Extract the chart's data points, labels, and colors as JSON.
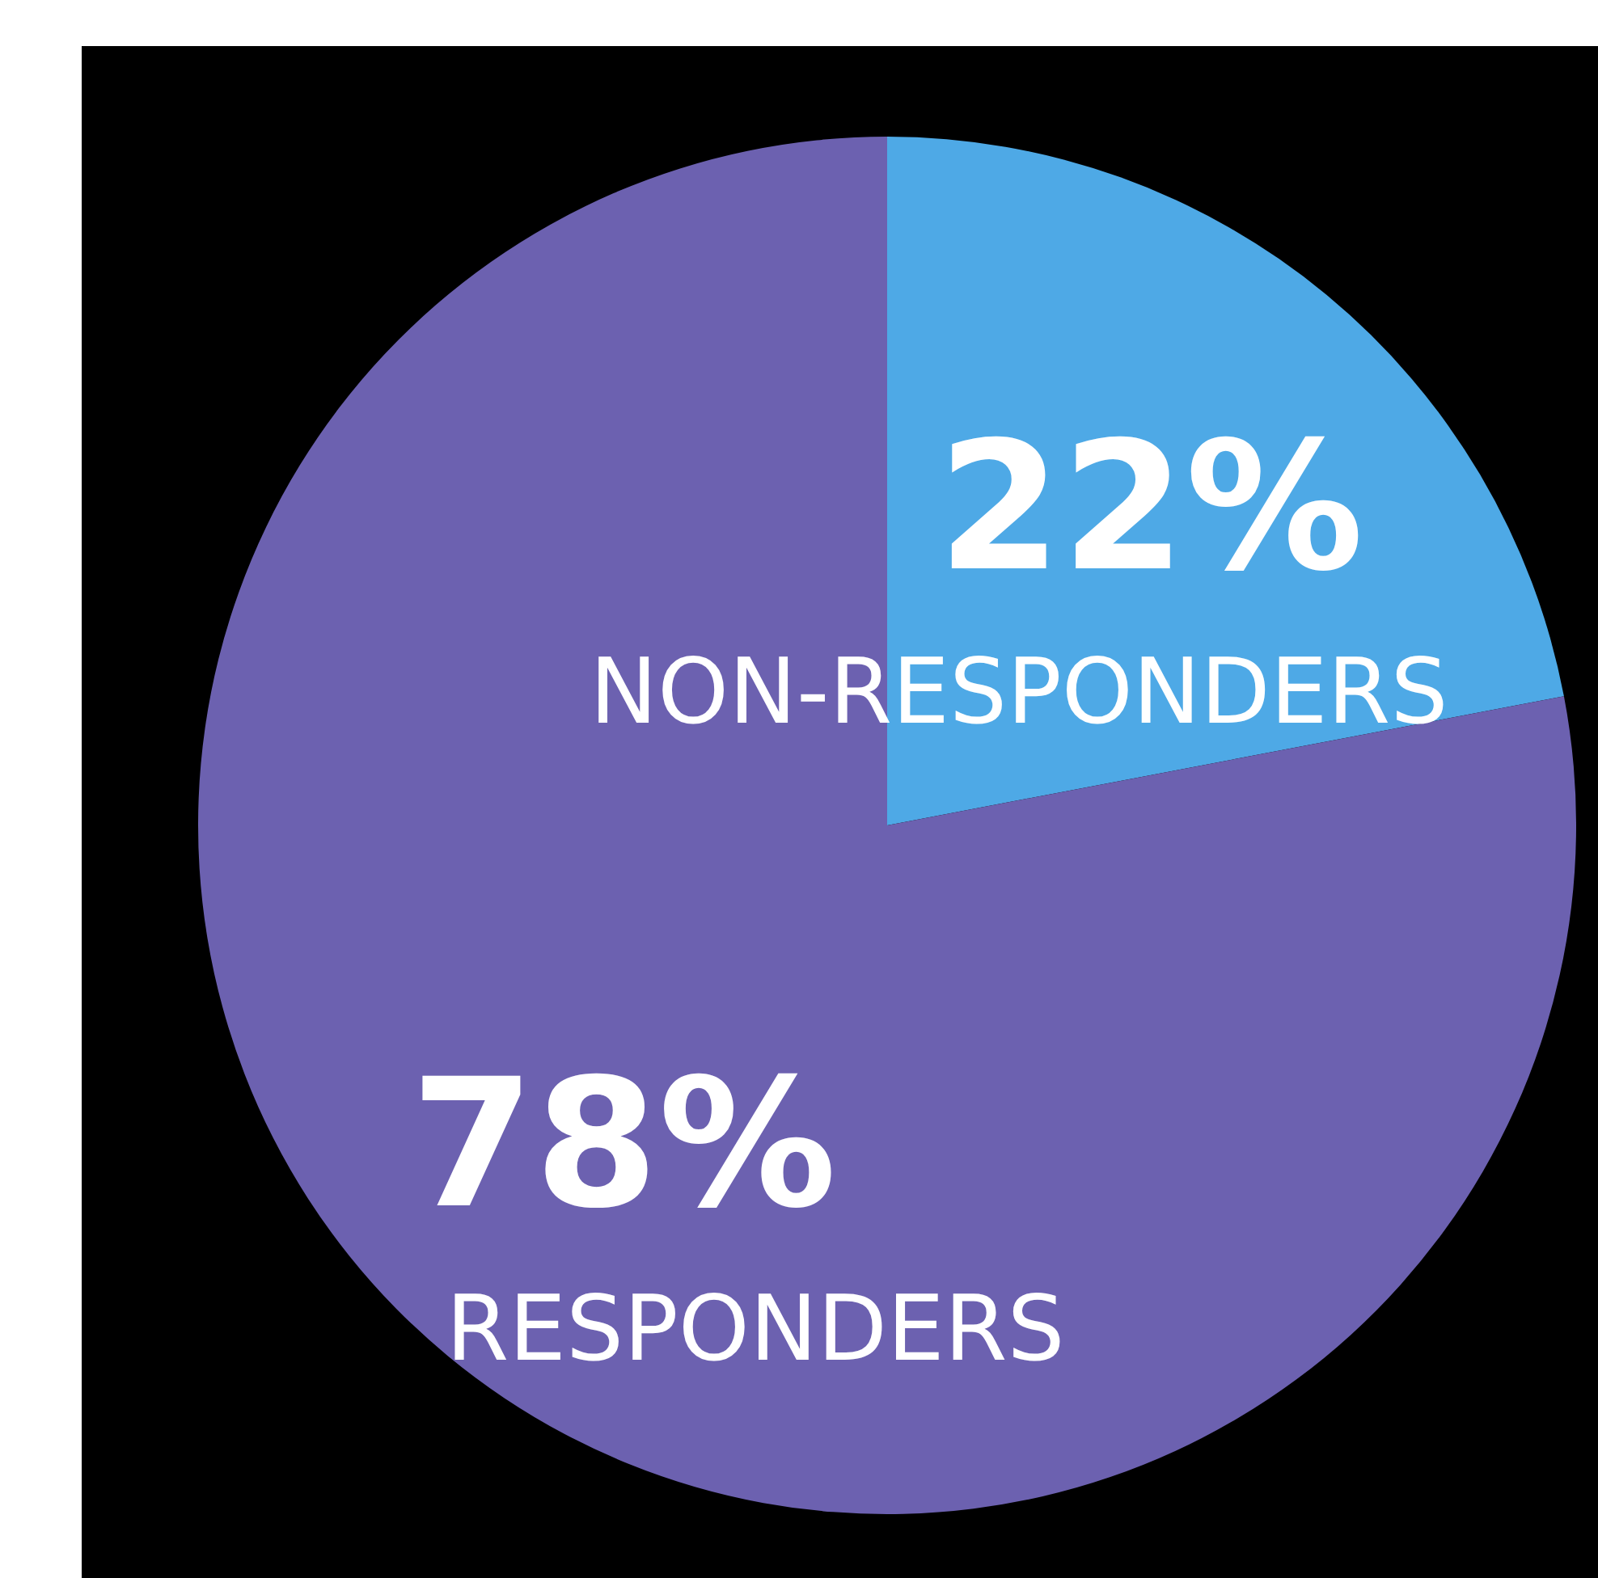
{
  "chart_data": {
    "type": "pie",
    "categories": [
      "NON-RESPONDERS",
      "RESPONDERS"
    ],
    "values": [
      22,
      78
    ],
    "colors": [
      "#4ea9e6",
      "#6c61b0"
    ],
    "value_labels": [
      "22%",
      "78%"
    ]
  }
}
